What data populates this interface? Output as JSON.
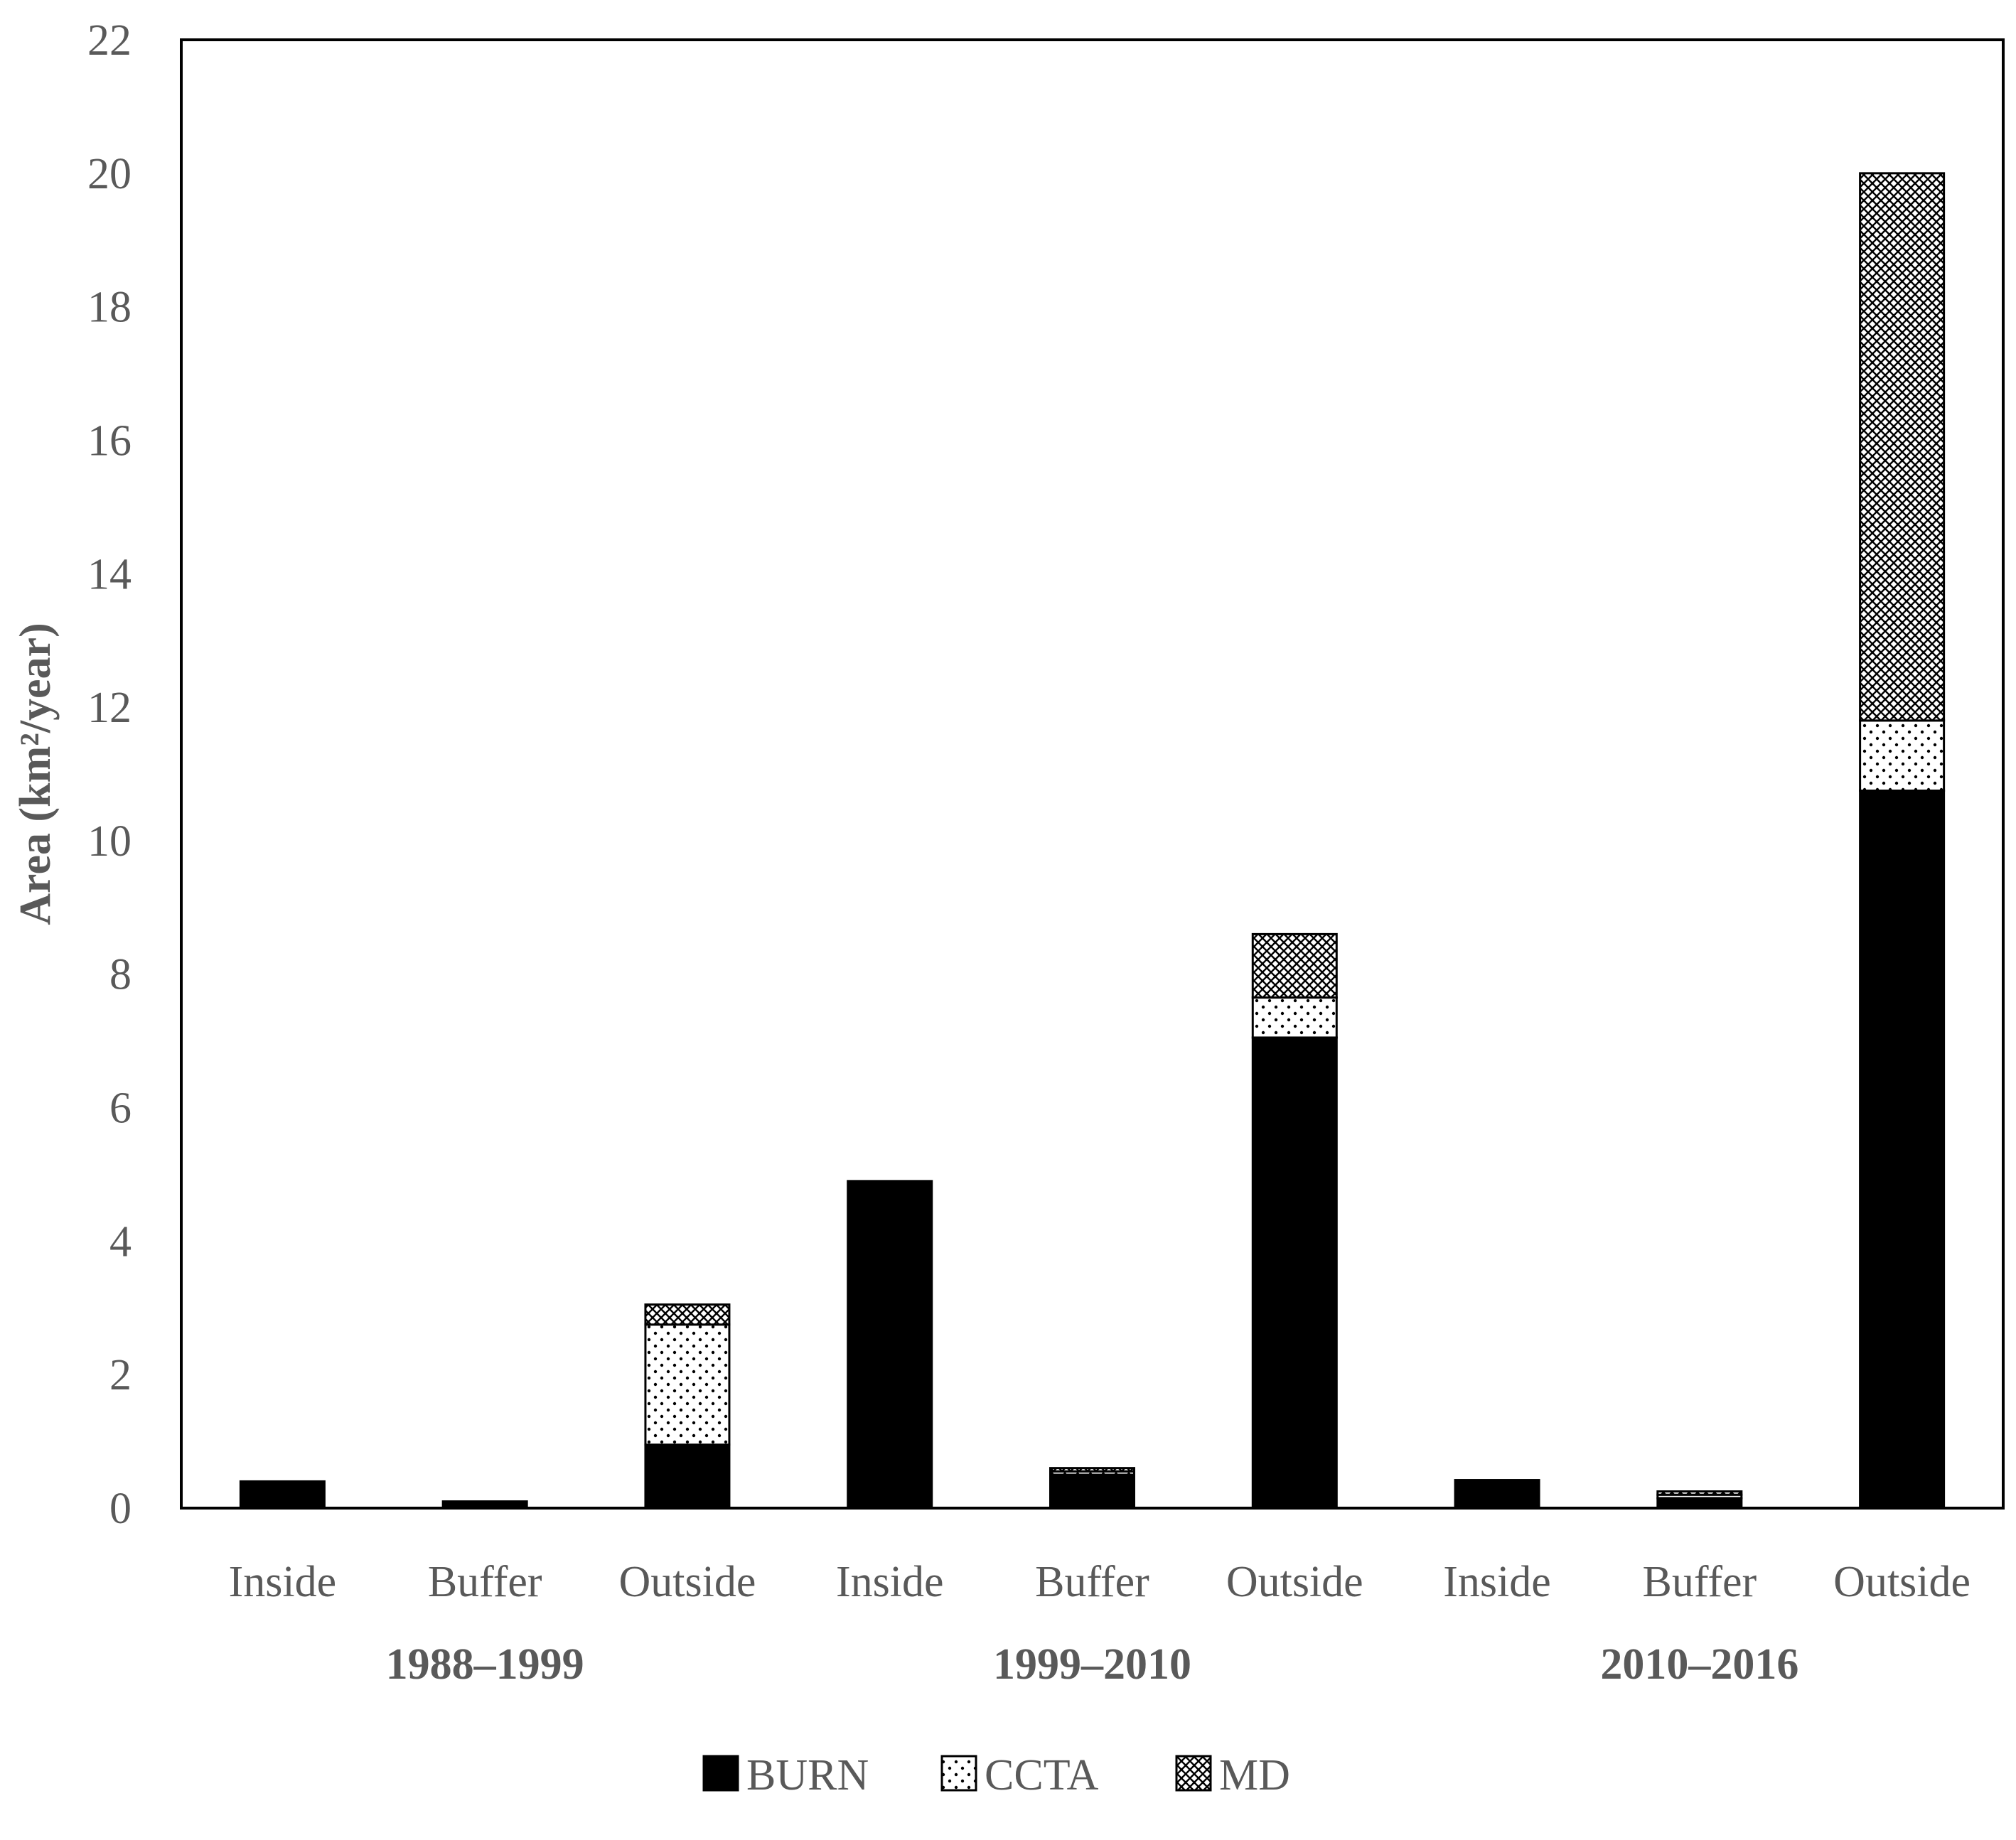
{
  "chart_data": {
    "type": "bar",
    "stacked": true,
    "ylabel": "Area (km²/year)",
    "ylim": [
      0,
      22
    ],
    "yticks": [
      0,
      2,
      4,
      6,
      8,
      10,
      12,
      14,
      16,
      18,
      20,
      22
    ],
    "categories": [
      "Inside",
      "Buffer",
      "Outside",
      "Inside",
      "Buffer",
      "Outside",
      "Inside",
      "Buffer",
      "Outside"
    ],
    "groups": [
      {
        "label": "1988–1999",
        "span": 3
      },
      {
        "label": "1999–2010",
        "span": 3
      },
      {
        "label": "2010–2016",
        "span": 3
      }
    ],
    "series": [
      {
        "name": "BURN",
        "pattern": "solid",
        "values": [
          0.4,
          0.1,
          0.95,
          4.9,
          0.5,
          7.05,
          0.42,
          0.15,
          10.75
        ]
      },
      {
        "name": "CCTA",
        "pattern": "dots",
        "values": [
          0,
          0,
          1.8,
          0,
          0.05,
          0.6,
          0,
          0.05,
          1.05
        ]
      },
      {
        "name": "MD",
        "pattern": "crosshatch",
        "values": [
          0,
          0,
          0.3,
          0,
          0.05,
          0.95,
          0,
          0.05,
          8.2
        ]
      }
    ],
    "grid": false,
    "legend_position": "bottom"
  }
}
